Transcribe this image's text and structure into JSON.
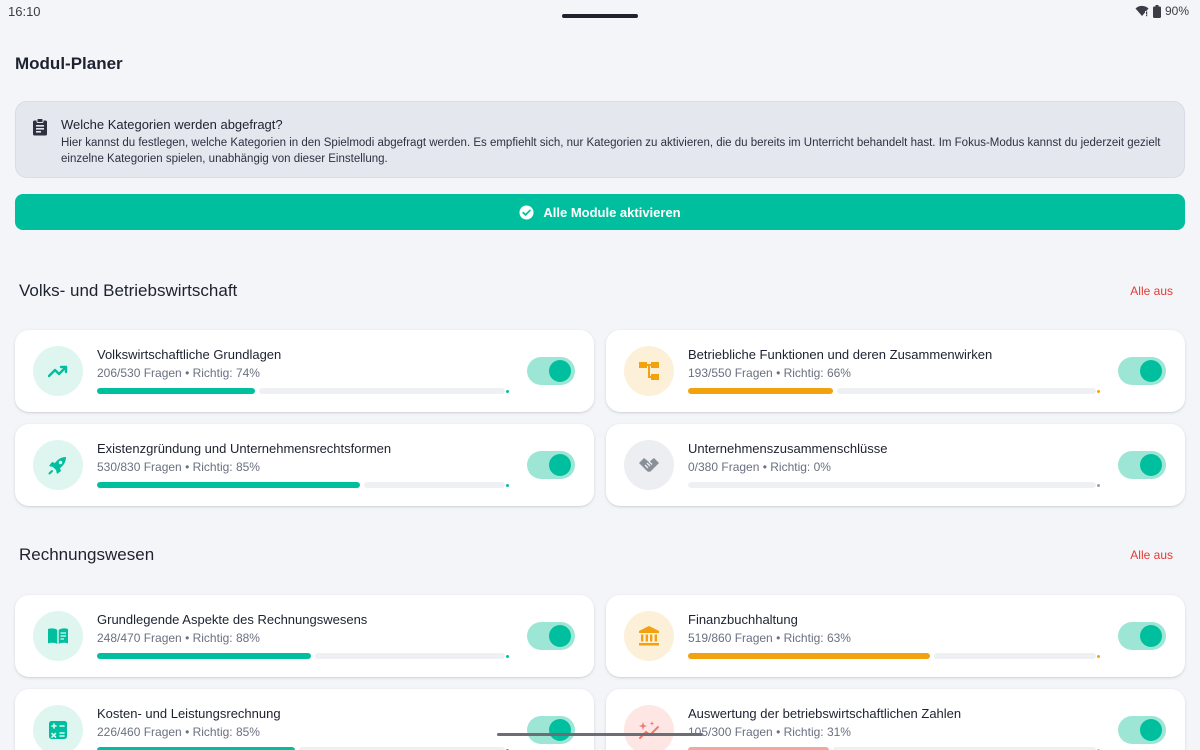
{
  "status_bar": {
    "time": "16:10",
    "battery": "90%"
  },
  "page": {
    "title": "Modul-Planer"
  },
  "info": {
    "title": "Welche Kategorien werden abgefragt?",
    "text": "Hier kannst du festlegen, welche Kategorien in den Spielmodi abgefragt werden. Es empfiehlt sich, nur Kategorien zu aktivieren, die du bereits im Unterricht behandelt hast. Im Fokus-Modus kannst du jederzeit gezielt einzelne Kategorien spielen, unabhängig von dieser Einstellung."
  },
  "activate_button": {
    "label": "Alle Module aktivieren"
  },
  "colors": {
    "accent": "#00bf9f",
    "orange": "#f2a20f",
    "red": "#e53935",
    "gray": "#9aa0ab"
  },
  "sections": [
    {
      "title": "Volks- und Betriebswirtschaft",
      "action": "Alle aus",
      "modules": [
        {
          "title": "Volkswirtschaftliche Grundlagen",
          "stats": "206/530 Fragen • Richtig: 74%",
          "progress": 0.39,
          "color": "green",
          "icon": "trending-up-icon",
          "enabled": true
        },
        {
          "title": "Betriebliche Funktionen und deren Zusammenwirken",
          "stats": "193/550 Fragen • Richtig: 66%",
          "progress": 0.36,
          "color": "orange",
          "icon": "org-chart-icon",
          "enabled": true
        },
        {
          "title": "Existenzgründung und Unternehmensrechtsformen",
          "stats": "530/830 Fragen • Richtig: 85%",
          "progress": 0.65,
          "color": "green",
          "icon": "rocket-icon",
          "enabled": true
        },
        {
          "title": "Unternehmenszusammenschlüsse",
          "stats": "0/380 Fragen • Richtig: 0%",
          "progress": 0,
          "color": "gray",
          "icon": "handshake-icon",
          "enabled": true
        }
      ]
    },
    {
      "title": "Rechnungswesen",
      "action": "Alle aus",
      "modules": [
        {
          "title": "Grundlegende Aspekte des Rechnungswesens",
          "stats": "248/470 Fragen • Richtig: 88%",
          "progress": 0.53,
          "color": "green",
          "icon": "book-icon",
          "enabled": true
        },
        {
          "title": "Finanzbuchhaltung",
          "stats": "519/860 Fragen • Richtig: 63%",
          "progress": 0.6,
          "color": "orange",
          "icon": "bank-icon",
          "enabled": true
        },
        {
          "title": "Kosten- und Leistungsrechnung",
          "stats": "226/460 Fragen • Richtig: 85%",
          "progress": 0.49,
          "color": "green",
          "icon": "calculator-icon",
          "enabled": true
        },
        {
          "title": "Auswertung der betriebswirtschaftlichen Zahlen",
          "stats": "105/300 Fragen • Richtig: 31%",
          "progress": 0.35,
          "color": "red",
          "icon": "chart-sparkle-icon",
          "enabled": true
        }
      ]
    }
  ]
}
